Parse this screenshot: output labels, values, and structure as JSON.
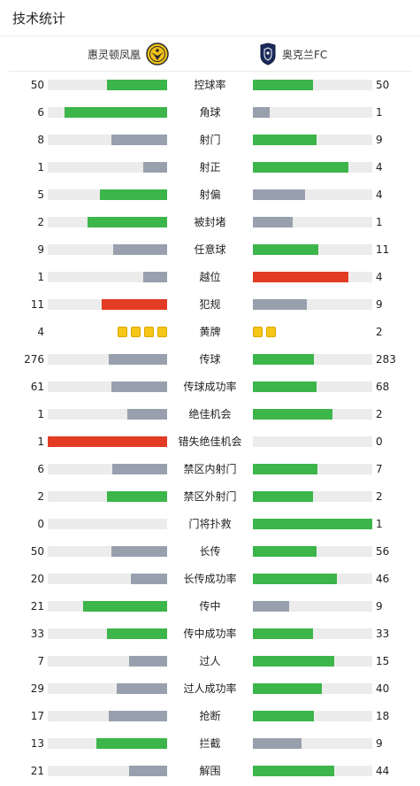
{
  "header": {
    "title": "技术统计"
  },
  "teams": {
    "home": {
      "name": "惠灵顿凤凰",
      "logo_icon": "wellington-phoenix-crest-icon"
    },
    "away": {
      "name": "奥克兰FC",
      "logo_icon": "auckland-fc-crest-icon"
    }
  },
  "colors": {
    "better": "#3cb54a",
    "worse": "#98a0ae",
    "alert": "#e23c24",
    "track": "#ececec",
    "card": "#f5c518"
  },
  "stats": [
    {
      "label": "控球率",
      "home": "50",
      "away": "50",
      "home_pct": 0.5,
      "away_pct": 0.5,
      "home_color": "better",
      "away_color": "better"
    },
    {
      "label": "角球",
      "home": "6",
      "away": "1",
      "home_pct": 0.86,
      "away_pct": 0.14,
      "home_color": "better",
      "away_color": "worse"
    },
    {
      "label": "射门",
      "home": "8",
      "away": "9",
      "home_pct": 0.47,
      "away_pct": 0.53,
      "home_color": "worse",
      "away_color": "better"
    },
    {
      "label": "射正",
      "home": "1",
      "away": "4",
      "home_pct": 0.2,
      "away_pct": 0.8,
      "home_color": "worse",
      "away_color": "better"
    },
    {
      "label": "射偏",
      "home": "5",
      "away": "4",
      "home_pct": 0.56,
      "away_pct": 0.44,
      "home_color": "better",
      "away_color": "worse"
    },
    {
      "label": "被封堵",
      "home": "2",
      "away": "1",
      "home_pct": 0.67,
      "away_pct": 0.33,
      "home_color": "better",
      "away_color": "worse"
    },
    {
      "label": "任意球",
      "home": "9",
      "away": "11",
      "home_pct": 0.45,
      "away_pct": 0.55,
      "home_color": "worse",
      "away_color": "better"
    },
    {
      "label": "越位",
      "home": "1",
      "away": "4",
      "home_pct": 0.2,
      "away_pct": 0.8,
      "home_color": "worse",
      "away_color": "alert"
    },
    {
      "label": "犯规",
      "home": "11",
      "away": "9",
      "home_pct": 0.55,
      "away_pct": 0.45,
      "home_color": "alert",
      "away_color": "worse"
    },
    {
      "label": "黄牌",
      "home": "4",
      "away": "2",
      "home_cards": 4,
      "away_cards": 2,
      "type": "cards"
    },
    {
      "label": "传球",
      "home": "276",
      "away": "283",
      "home_pct": 0.49,
      "away_pct": 0.51,
      "home_color": "worse",
      "away_color": "better"
    },
    {
      "label": "传球成功率",
      "home": "61",
      "away": "68",
      "home_pct": 0.47,
      "away_pct": 0.53,
      "home_color": "worse",
      "away_color": "better"
    },
    {
      "label": "绝佳机会",
      "home": "1",
      "away": "2",
      "home_pct": 0.33,
      "away_pct": 0.67,
      "home_color": "worse",
      "away_color": "better"
    },
    {
      "label": "错失绝佳机会",
      "home": "1",
      "away": "0",
      "home_pct": 1.0,
      "away_pct": 0.0,
      "home_color": "alert",
      "away_color": "worse"
    },
    {
      "label": "禁区内射门",
      "home": "6",
      "away": "7",
      "home_pct": 0.46,
      "away_pct": 0.54,
      "home_color": "worse",
      "away_color": "better"
    },
    {
      "label": "禁区外射门",
      "home": "2",
      "away": "2",
      "home_pct": 0.5,
      "away_pct": 0.5,
      "home_color": "better",
      "away_color": "better"
    },
    {
      "label": "门将扑救",
      "home": "0",
      "away": "1",
      "home_pct": 0.0,
      "away_pct": 1.0,
      "home_color": "worse",
      "away_color": "better"
    },
    {
      "label": "长传",
      "home": "50",
      "away": "56",
      "home_pct": 0.47,
      "away_pct": 0.53,
      "home_color": "worse",
      "away_color": "better"
    },
    {
      "label": "长传成功率",
      "home": "20",
      "away": "46",
      "home_pct": 0.3,
      "away_pct": 0.7,
      "home_color": "worse",
      "away_color": "better"
    },
    {
      "label": "传中",
      "home": "21",
      "away": "9",
      "home_pct": 0.7,
      "away_pct": 0.3,
      "home_color": "better",
      "away_color": "worse"
    },
    {
      "label": "传中成功率",
      "home": "33",
      "away": "33",
      "home_pct": 0.5,
      "away_pct": 0.5,
      "home_color": "better",
      "away_color": "better"
    },
    {
      "label": "过人",
      "home": "7",
      "away": "15",
      "home_pct": 0.32,
      "away_pct": 0.68,
      "home_color": "worse",
      "away_color": "better"
    },
    {
      "label": "过人成功率",
      "home": "29",
      "away": "40",
      "home_pct": 0.42,
      "away_pct": 0.58,
      "home_color": "worse",
      "away_color": "better"
    },
    {
      "label": "抢断",
      "home": "17",
      "away": "18",
      "home_pct": 0.49,
      "away_pct": 0.51,
      "home_color": "worse",
      "away_color": "better"
    },
    {
      "label": "拦截",
      "home": "13",
      "away": "9",
      "home_pct": 0.59,
      "away_pct": 0.41,
      "home_color": "better",
      "away_color": "worse"
    },
    {
      "label": "解围",
      "home": "21",
      "away": "44",
      "home_pct": 0.32,
      "away_pct": 0.68,
      "home_color": "worse",
      "away_color": "better"
    }
  ]
}
